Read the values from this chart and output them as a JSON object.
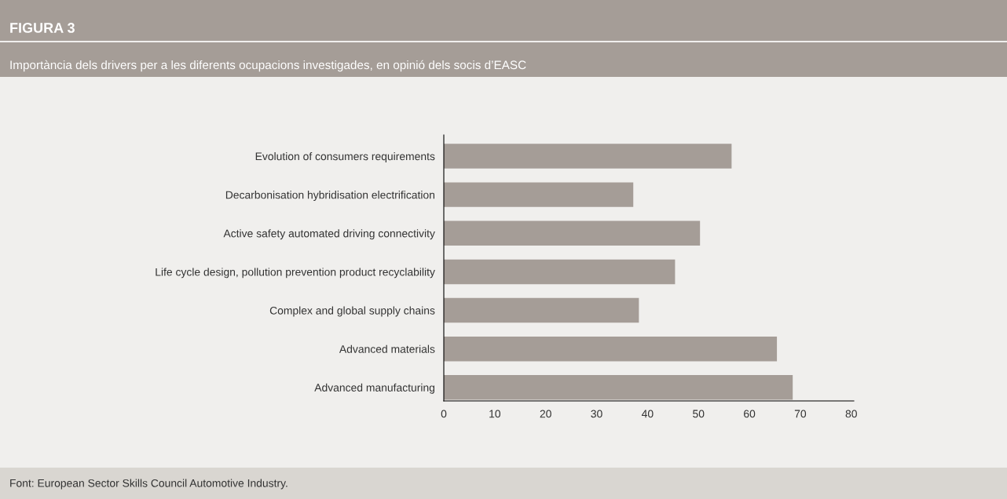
{
  "chart_data": {
    "type": "bar",
    "orientation": "horizontal",
    "title": "FIGURA 3",
    "subtitle": "Importància dels drivers per a les diferents ocupacions investigades, en opinió dels socis d’EASC",
    "categories": [
      "Evolution of consumers requirements",
      "Decarbonisation hybridisation electrification",
      "Active safety automated driving connectivity",
      "Life cycle design, pollution prevention product recyclability",
      "Complex and global supply chains",
      "Advanced materials",
      "Advanced manufacturing"
    ],
    "values": [
      56.5,
      37.2,
      50.3,
      45.4,
      38.3,
      65.4,
      68.5
    ],
    "color": "#a59d97",
    "xlim": [
      0,
      80.5
    ],
    "xticks": [
      0,
      10,
      20,
      30,
      40,
      50,
      60,
      70,
      80
    ],
    "grid": false,
    "annotations": [
      "Font: European Sector Skills Council Automotive Industry."
    ]
  }
}
